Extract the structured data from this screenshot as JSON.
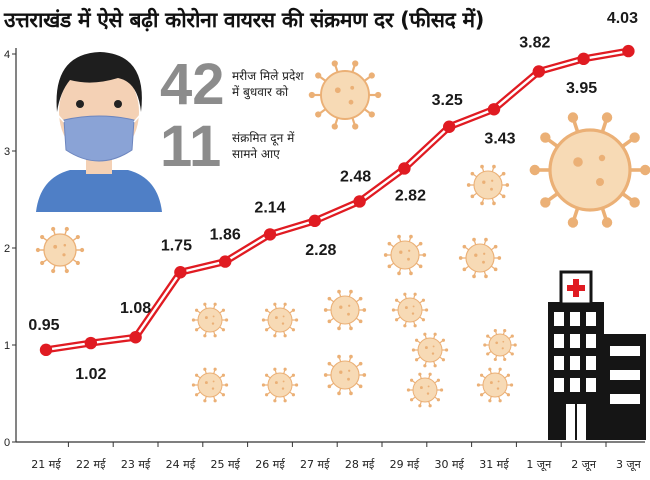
{
  "header": {
    "title": "उत्तराखंड में ऐसे बढ़ी कोरोना वायरस की संक्रमण दर (फीसद में)"
  },
  "stats": [
    {
      "number": "42",
      "text_line1": "मरीज मिले प्रदेश",
      "text_line2": "में बुधवार को"
    },
    {
      "number": "11",
      "text_line1": "संक्रमित दून में",
      "text_line2": "सामने आए"
    }
  ],
  "colors": {
    "line": "#e01b22",
    "marker": "#e01b22",
    "virus": "#e9a868",
    "face": "#f4d1b5",
    "mask": "#8aa3d6"
  },
  "icons": [
    "masked-person-illustration",
    "coronavirus-icon",
    "hospital-icon"
  ],
  "chart_data": {
    "type": "line",
    "title": "उत्तराखंड में ऐसे बढ़ी कोरोना वायरस की संक्रमण दर (फीसद में)",
    "xlabel": "",
    "ylabel": "",
    "categories": [
      "21 मई",
      "22 मई",
      "23 मई",
      "24 मई",
      "25 मई",
      "26 मई",
      "27 मई",
      "28 मई",
      "29 मई",
      "30 मई",
      "31 मई",
      "1 जून",
      "2 जून",
      "3 जून"
    ],
    "values": [
      0.95,
      1.02,
      1.08,
      1.75,
      1.86,
      2.14,
      2.28,
      2.48,
      2.82,
      3.25,
      3.43,
      3.82,
      3.95,
      4.03
    ],
    "value_labels": [
      "0.95",
      "1.02",
      "1.08",
      "1.75",
      "1.86",
      "2.14",
      "2.28",
      "2.48",
      "2.82",
      "3.25",
      "3.43",
      "3.82",
      "3.95",
      "4.03"
    ],
    "ylim": [
      0,
      4
    ],
    "yticks": [
      0,
      1,
      2,
      3,
      4
    ],
    "grid": false,
    "legend": "none"
  }
}
